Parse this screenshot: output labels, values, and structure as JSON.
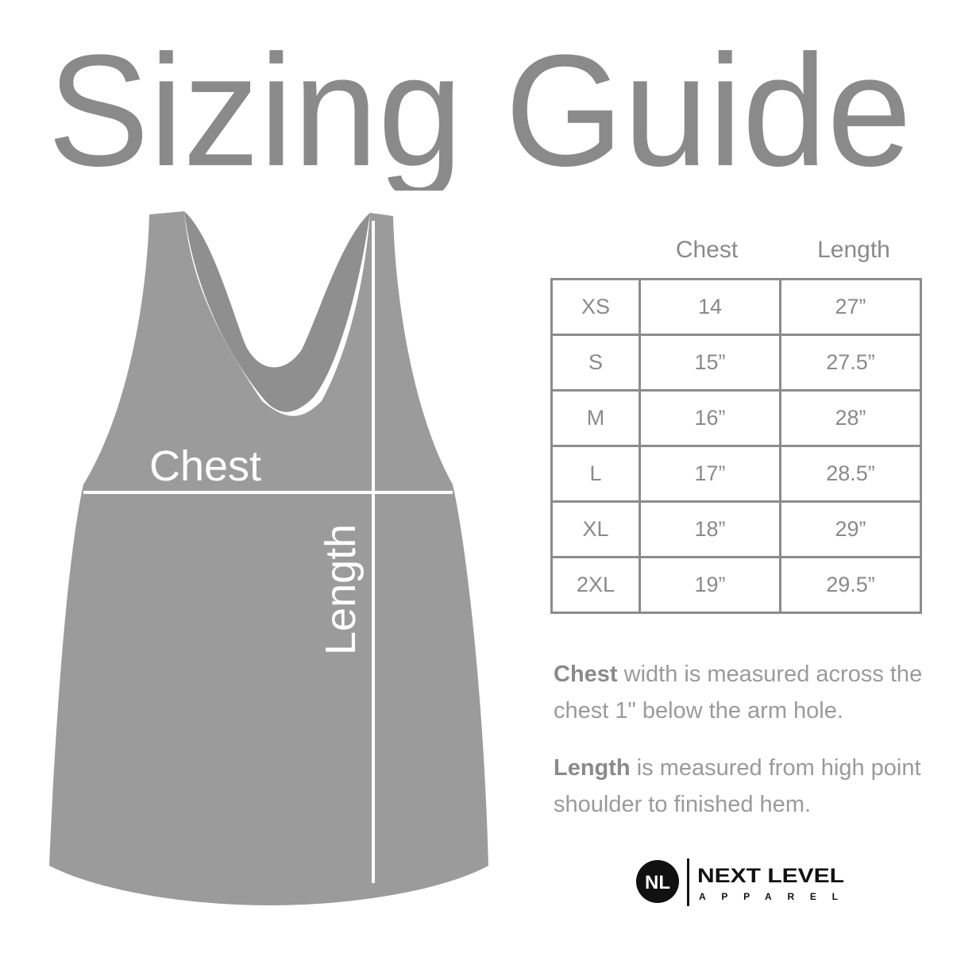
{
  "title": "Sizing Guide",
  "garment": {
    "chest_label": "Chest",
    "length_label": "Length",
    "color": "#9b9b9b"
  },
  "size_table": {
    "headers": [
      "",
      "Chest",
      "Length"
    ],
    "rows": [
      [
        "XS",
        "14",
        "27”"
      ],
      [
        "S",
        "15”",
        "27.5”"
      ],
      [
        "M",
        "16”",
        "28”"
      ],
      [
        "L",
        "17”",
        "28.5”"
      ],
      [
        "XL",
        "18”",
        "29”"
      ],
      [
        "2XL",
        "19”",
        "29.5”"
      ]
    ]
  },
  "notes": [
    {
      "term": "Chest",
      "text": " width is measured across the chest 1\" below the arm hole."
    },
    {
      "term": "Length",
      "text": " is measured from high point shoulder to finished hem."
    }
  ],
  "logo": {
    "monogram": "NL",
    "line1": "NEXT LEVEL",
    "line2": "APPAREL"
  }
}
